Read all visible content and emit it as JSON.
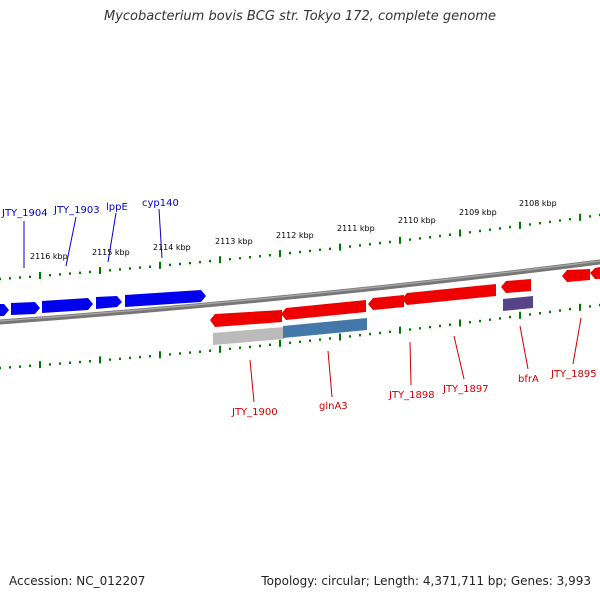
{
  "header": {
    "title": "Mycobacterium bovis BCG str. Tokyo 172, complete genome"
  },
  "footer": {
    "accession": "Accession: NC_012207",
    "summary": "Topology: circular; Length: 4,371,711 bp; Genes: 3,993"
  },
  "scale_labels": [
    {
      "id": "kbp-2116",
      "text": "2116 kbp"
    },
    {
      "id": "kbp-2115",
      "text": "2115 kbp"
    },
    {
      "id": "kbp-2114",
      "text": "2114 kbp"
    },
    {
      "id": "kbp-2113",
      "text": "2113 kbp"
    },
    {
      "id": "kbp-2112",
      "text": "2112 kbp"
    },
    {
      "id": "kbp-2111",
      "text": "2111 kbp"
    },
    {
      "id": "kbp-2110",
      "text": "2110 kbp"
    },
    {
      "id": "kbp-2109",
      "text": "2109 kbp"
    },
    {
      "id": "kbp-2108",
      "text": "2108 kbp"
    }
  ],
  "forward_genes": [
    {
      "id": "jty-1904",
      "label": "JTY_1904"
    },
    {
      "id": "jty-1903",
      "label": "JTY_1903"
    },
    {
      "id": "lppe",
      "label": "lppE"
    },
    {
      "id": "cyp140",
      "label": "cyp140"
    }
  ],
  "reverse_genes": [
    {
      "id": "jty-1900",
      "label": "JTY_1900"
    },
    {
      "id": "glna3",
      "label": "glnA3"
    },
    {
      "id": "jty-1898",
      "label": "JTY_1898"
    },
    {
      "id": "jty-1897",
      "label": "JTY_1897"
    },
    {
      "id": "bfra",
      "label": "bfrA"
    },
    {
      "id": "jty-1895",
      "label": "JTY_1895"
    }
  ],
  "colors": {
    "forward_strand": "#0000ee",
    "reverse_strand": "#ee0000",
    "backbone": "#777777",
    "tick": "#007700",
    "gene_label_forward": "#0000cc",
    "gene_label_reverse": "#cc0000",
    "feature_gray": "#bbbbbb",
    "feature_blue": "#4477aa",
    "feature_purple": "#554488"
  }
}
